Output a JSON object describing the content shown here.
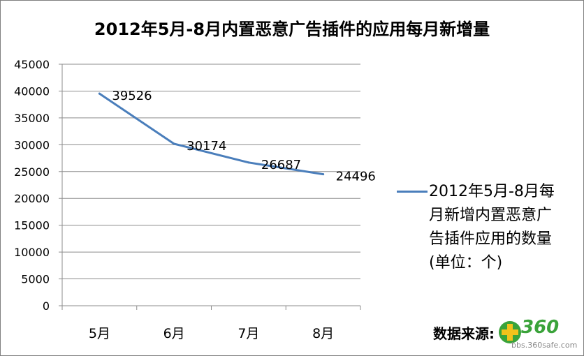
{
  "chart_data": {
    "type": "line",
    "title": "2012年5月-8月内置恶意广告插件的应用每月新增量",
    "categories": [
      "5月",
      "6月",
      "7月",
      "8月"
    ],
    "series": [
      {
        "name": "2012年5月-8月每月新增内置恶意广告插件应用的数量(单位：个)",
        "values": [
          39526,
          30174,
          26687,
          24496
        ]
      }
    ],
    "ylim": [
      0,
      45000
    ],
    "yticks": [
      0,
      5000,
      10000,
      15000,
      20000,
      25000,
      30000,
      35000,
      40000,
      45000
    ],
    "grid": true,
    "legend": "right",
    "line_color": "#4a7ebb"
  },
  "legend_lines": [
    "2012年5月-8月每",
    "月新增内置恶意广",
    "告插件应用的数量",
    "(单位：个)"
  ],
  "source_label": "数据来源:",
  "logo": {
    "text": "360",
    "url": "bbs.360safe.com"
  }
}
